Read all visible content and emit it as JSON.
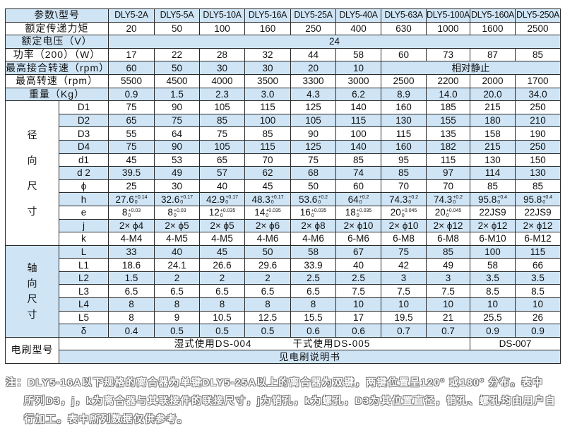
{
  "header": {
    "label": "参数\\型号",
    "models": [
      "DLY5-2A",
      "DLY5-5A",
      "DLY5-10A",
      "DLY5-16A",
      "DLY5-25A",
      "DLY5-40A",
      "DLY5-63A",
      "DLY5-100A",
      "DLY5-160A",
      "DLY5-250A"
    ]
  },
  "torque": {
    "label": "额定传递力矩",
    "values": [
      "20",
      "50",
      "100",
      "160",
      "250",
      "400",
      "630",
      "1000",
      "1600",
      "2500"
    ]
  },
  "voltage": {
    "label": "额定电压（V）",
    "value": "24"
  },
  "power": {
    "label": "功率（200）（W）",
    "values": [
      "17",
      "22",
      "28",
      "32",
      "44",
      "58",
      "60",
      "73",
      "87",
      "85"
    ]
  },
  "engage_speed": {
    "label": "最高接合转速（rpm）",
    "values": [
      "60",
      "50",
      "30",
      "30",
      "20",
      "10"
    ],
    "rest": "相对静止"
  },
  "max_speed": {
    "label": "最高转速（rpm）",
    "values": [
      "5500",
      "4500",
      "4000",
      "3500",
      "3300",
      "3000",
      "2500",
      "2200",
      "2000",
      "1700"
    ]
  },
  "weight": {
    "label": "重量（Kg）",
    "values": [
      "0.9",
      "1.5",
      "2.3",
      "3.0",
      "4.3",
      "6.2",
      "8.9",
      "14.0",
      "20.0",
      "34.0"
    ]
  },
  "radial": {
    "group_label": [
      "径",
      "向",
      "尺",
      "寸"
    ],
    "rows": [
      {
        "label": "D1",
        "values": [
          "75",
          "90",
          "105",
          "115",
          "125",
          "140",
          "160",
          "185",
          "215",
          "250"
        ]
      },
      {
        "label": "D2",
        "values": [
          "65",
          "75",
          "85",
          "100",
          "105",
          "115",
          "130",
          "155",
          "180",
          "210"
        ]
      },
      {
        "label": "D3",
        "values": [
          "55",
          "64",
          "75",
          "85",
          "90",
          "100",
          "115",
          "135",
          "158",
          "190"
        ]
      },
      {
        "label": "D4",
        "values": [
          "75",
          "90",
          "105",
          "115",
          "125",
          "140",
          "160",
          "182",
          "215",
          "250"
        ]
      },
      {
        "label": "d1",
        "values": [
          "45",
          "53",
          "65",
          "70",
          "75",
          "85",
          "95",
          "115",
          "130",
          "150"
        ]
      },
      {
        "label": "d 2",
        "values": [
          "39.5",
          "49",
          "57",
          "62",
          "68",
          "74",
          "85",
          "97",
          "114",
          "130"
        ]
      },
      {
        "label": "ϕ",
        "values": [
          "25",
          "30",
          "40",
          "45",
          "50",
          "60",
          "70",
          "70",
          "85",
          "85"
        ]
      },
      {
        "label": "h",
        "values": [
          {
            "base": "27.6",
            "upper": "+0.14",
            "lower": "0"
          },
          {
            "base": "32.6",
            "upper": "+0.17",
            "lower": "0"
          },
          {
            "base": "42.9",
            "upper": "+0.17",
            "lower": "0"
          },
          {
            "base": "48.3",
            "upper": "+0.17",
            "lower": "0"
          },
          {
            "base": "53.6",
            "upper": "+0.2",
            "lower": "0"
          },
          {
            "base": "64",
            "upper": "+0.2",
            "lower": "0"
          },
          {
            "base": "74.3",
            "upper": "+0.2",
            "lower": "0"
          },
          {
            "base": "74.3",
            "upper": "+0.2",
            "lower": "0"
          },
          {
            "base": "95.8",
            "upper": "+0.4",
            "lower": "0"
          },
          {
            "base": "95.8",
            "upper": "+0.4",
            "lower": "0"
          }
        ]
      },
      {
        "label": "e",
        "values": [
          {
            "base": "8",
            "upper": "+0.03",
            "lower": "0"
          },
          {
            "base": "8",
            "upper": "+0.03",
            "lower": "0"
          },
          {
            "base": "12",
            "upper": "+0.035",
            "lower": "0"
          },
          {
            "base": "14",
            "upper": "+0.035",
            "lower": "0"
          },
          {
            "base": "16",
            "upper": "+0.035",
            "lower": "0"
          },
          {
            "base": "18",
            "upper": "+0.035",
            "lower": "0"
          },
          {
            "base": "20",
            "upper": "+0.045",
            "lower": "0"
          },
          {
            "base": "20",
            "upper": "+0.045",
            "lower": "0"
          },
          "22JS9",
          "22JS9"
        ]
      },
      {
        "label": "j",
        "values": [
          "2× ϕ4",
          "2× ϕ5",
          "2× ϕ5",
          "2× ϕ6",
          "2× ϕ8",
          "2× ϕ10",
          "2× ϕ10",
          "2× ϕ12",
          "2× ϕ12",
          "2× ϕ12"
        ]
      },
      {
        "label": "k",
        "values": [
          "4-M4",
          "4-M5",
          "4-M5",
          "4-M6",
          "4-M6",
          "6-M6",
          "6-M8",
          "6-M8",
          "6-M10",
          "6-M12"
        ]
      }
    ]
  },
  "axial": {
    "group_label": [
      "轴",
      "向",
      "尺",
      "寸"
    ],
    "rows": [
      {
        "label": "L",
        "values": [
          "33",
          "40",
          "45",
          "50",
          "58",
          "67",
          "75",
          "85",
          "100",
          "115"
        ]
      },
      {
        "label": "L1",
        "values": [
          "18.6",
          "24.1",
          "26.6",
          "29.6",
          "33.9",
          "40",
          "42",
          "49",
          "58",
          "66"
        ]
      },
      {
        "label": "L2",
        "values": [
          "1.5",
          "2",
          "2",
          "2",
          "2.5",
          "2.5",
          "3",
          "3",
          "3.5",
          "3.5"
        ]
      },
      {
        "label": "L3",
        "values": [
          "6.5",
          "6.5",
          "6.5",
          "6.5",
          "6.5",
          "7.5",
          "7.5",
          "7.5",
          "8.5",
          "8.5"
        ]
      },
      {
        "label": "L4",
        "values": [
          "8",
          "8",
          "8",
          "8",
          "8",
          "10",
          "10",
          "10",
          "10",
          "10"
        ]
      },
      {
        "label": "L5",
        "values": [
          "8",
          "9",
          "10.5",
          "12.5",
          "15.5",
          "17",
          "19.5",
          "21",
          "25.5",
          "26"
        ]
      },
      {
        "label": "δ",
        "values": [
          "0.4",
          "0.5",
          "0.5",
          "0.5",
          "0.6",
          "0.6",
          "0.7",
          "0.7",
          "0.9",
          "0.9"
        ]
      }
    ]
  },
  "brush": {
    "label": "电刷型号",
    "wet": "湿式使用DS-004",
    "dry": "干式使用DS-005",
    "large": "DS-007",
    "see": "见电刷说明书"
  },
  "note": {
    "lines": [
      "注：DLY5-16A以下规格的离合器为单键DLY5-25A以上的离合器为双键，两键位置呈120° 或180° 分布。表中",
      "所列D3，j，k为离合器与其联接件的联接尺寸，j为销孔，k为螺孔，D3为其位置直径，销孔、螺孔均由用户自",
      "行加工。表中所列数据仅供参考。"
    ]
  },
  "colors": {
    "row_highlight": "#cfe5f6",
    "border": "#2a2a2a"
  }
}
